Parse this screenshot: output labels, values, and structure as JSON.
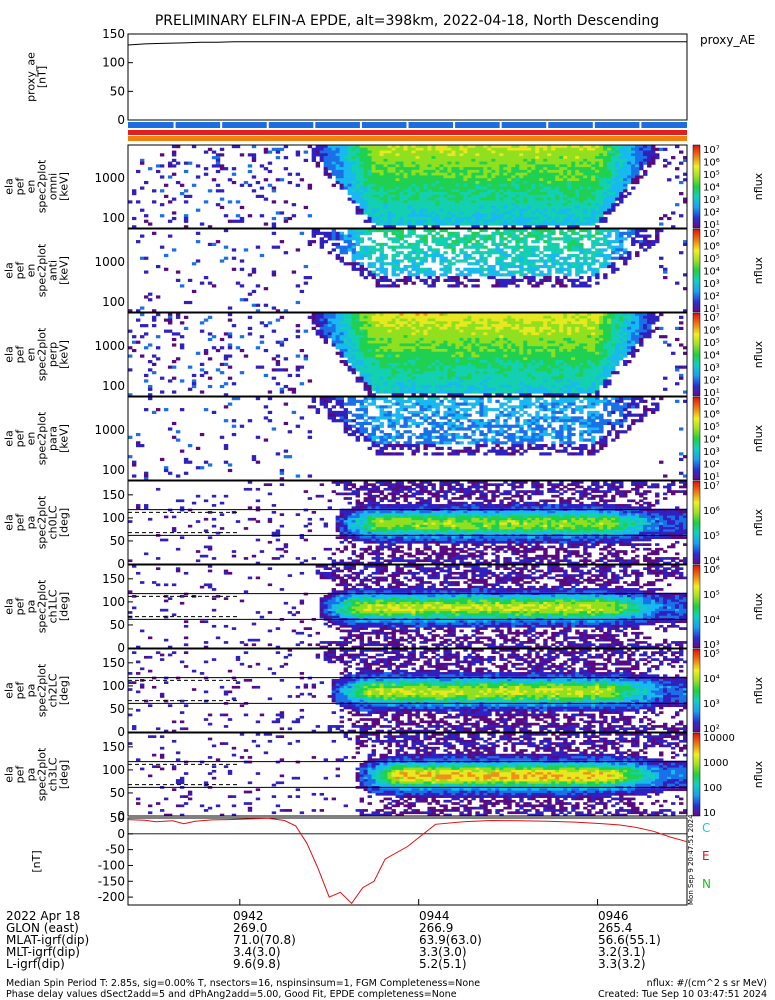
{
  "header": {
    "title": "PRELIMINARY ELFIN-A EPDE, alt=398km, 2022-04-18, North Descending"
  },
  "chart_data": [
    {
      "type": "line",
      "panel": "proxy_ae",
      "ylabel_lines": [
        "proxy_ae",
        "[nT]"
      ],
      "legend": "proxy_AE",
      "ylim": [
        0,
        150
      ],
      "yticks": [
        "150",
        "100",
        "50",
        "0"
      ],
      "x": [
        0.0,
        0.03,
        0.06,
        0.1,
        0.13,
        0.16,
        0.19,
        0.21,
        1.0
      ],
      "values": [
        135,
        137,
        138,
        139,
        140,
        140,
        141,
        141,
        141
      ]
    },
    {
      "type": "heatmap",
      "panel": "energy spectrogram 1",
      "ylabel_lines": [
        "ela",
        "pef",
        "en",
        "spec2plot",
        "omni",
        "[keV]"
      ],
      "ytick_labels": [
        "1000",
        "100"
      ],
      "colorbar_label": "nflux",
      "colorbar_ticks": [
        "10⁷",
        "10⁶",
        "10⁵",
        "10⁴",
        "10³",
        "10²",
        "10¹"
      ]
    },
    {
      "type": "heatmap",
      "panel": "energy spectrogram 2",
      "ylabel_lines": [
        "ela",
        "pef",
        "en",
        "spec2plot",
        "anti",
        "[keV]"
      ],
      "ytick_labels": [
        "1000",
        "100"
      ],
      "colorbar_label": "nflux",
      "colorbar_ticks": [
        "10⁷",
        "10⁶",
        "10⁵",
        "10⁴",
        "10³",
        "10²",
        "10¹"
      ]
    },
    {
      "type": "heatmap",
      "panel": "energy spectrogram 3",
      "ylabel_lines": [
        "ela",
        "pef",
        "en",
        "spec2plot",
        "perp",
        "[keV]"
      ],
      "ytick_labels": [
        "1000",
        "100"
      ],
      "colorbar_label": "nflux",
      "colorbar_ticks": [
        "10⁷",
        "10⁶",
        "10⁵",
        "10⁴",
        "10³",
        "10²",
        "10¹"
      ]
    },
    {
      "type": "heatmap",
      "panel": "energy spectrogram 4",
      "ylabel_lines": [
        "ela",
        "pef",
        "en",
        "spec2plot",
        "para",
        "[keV]"
      ],
      "ytick_labels": [
        "1000",
        "100"
      ],
      "colorbar_label": "nflux",
      "colorbar_ticks": [
        "10⁷",
        "10⁶",
        "10⁵",
        "10⁴",
        "10³",
        "10²",
        "10¹"
      ]
    },
    {
      "type": "heatmap",
      "panel": "pitch angle ch0",
      "ylabel_lines": [
        "ela",
        "pef",
        "pa",
        "spec2plot",
        "ch0LC",
        "[deg]"
      ],
      "ylim": [
        0,
        180
      ],
      "yticks": [
        "150",
        "100",
        "50",
        "0"
      ],
      "colorbar_label": "nflux",
      "colorbar_ticks": [
        "10⁷",
        "10⁶",
        "10⁵",
        "10⁴"
      ]
    },
    {
      "type": "heatmap",
      "panel": "pitch angle ch1",
      "ylabel_lines": [
        "ela",
        "pef",
        "pa",
        "spec2plot",
        "ch1LC",
        "[deg]"
      ],
      "ylim": [
        0,
        180
      ],
      "yticks": [
        "150",
        "100",
        "50",
        "0"
      ],
      "colorbar_label": "nflux",
      "colorbar_ticks": [
        "10⁶",
        "10⁵",
        "10⁴",
        "10³"
      ]
    },
    {
      "type": "heatmap",
      "panel": "pitch angle ch2",
      "ylabel_lines": [
        "ela",
        "pef",
        "pa",
        "spec2plot",
        "ch2LC",
        "[deg]"
      ],
      "ylim": [
        0,
        180
      ],
      "yticks": [
        "150",
        "100",
        "50",
        "0"
      ],
      "colorbar_label": "nflux",
      "colorbar_ticks": [
        "10⁵",
        "10⁴",
        "10³",
        "10²"
      ]
    },
    {
      "type": "heatmap",
      "panel": "pitch angle ch3",
      "ylabel_lines": [
        "ela",
        "pef",
        "pa",
        "spec2plot",
        "ch3LC",
        "[deg]"
      ],
      "ylim": [
        0,
        180
      ],
      "yticks": [
        "150",
        "100",
        "50",
        "0"
      ],
      "colorbar_label": "nflux",
      "colorbar_ticks": [
        "10000",
        "1000",
        "100",
        "10"
      ]
    },
    {
      "type": "line",
      "panel": "field",
      "ylabel_lines": [
        "[nT]"
      ],
      "ylim": [
        -225,
        50
      ],
      "yticks": [
        "50",
        "0",
        "-50",
        "-100",
        "-150",
        "-200"
      ],
      "legend": [
        "C",
        "E",
        "N"
      ],
      "x": [
        0.0,
        0.03,
        0.05,
        0.08,
        0.1,
        0.12,
        0.15,
        0.18,
        0.22,
        0.25,
        0.28,
        0.3,
        0.32,
        0.34,
        0.36,
        0.38,
        0.4,
        0.42,
        0.44,
        0.46,
        0.5,
        0.55,
        0.6,
        0.65,
        0.7,
        0.75,
        0.8,
        0.85,
        0.88,
        0.91,
        0.94,
        0.97,
        1.0
      ],
      "values": [
        45,
        43,
        38,
        41,
        32,
        40,
        44,
        45,
        47,
        49,
        42,
        25,
        -30,
        -110,
        -200,
        -185,
        -220,
        -170,
        -150,
        -80,
        -40,
        30,
        38,
        42,
        41,
        40,
        37,
        32,
        28,
        20,
        8,
        -10,
        -25
      ]
    }
  ],
  "ephemeris": {
    "rows": [
      {
        "label": "2022 Apr 18",
        "v1": "0942",
        "v2": "0944",
        "v3": "0946"
      },
      {
        "label": "GLON (east)",
        "v1": "269.0",
        "v2": "266.9",
        "v3": "265.4"
      },
      {
        "label": "MLAT-igrf(dip)",
        "v1": "71.0(70.8)",
        "v2": "63.9(63.0)",
        "v3": "56.6(55.1)"
      },
      {
        "label": "MLT-igrf(dip)",
        "v1": "3.4(3.0)",
        "v2": "3.3(3.0)",
        "v3": "3.2(3.1)"
      },
      {
        "label": "L-igrf(dip)",
        "v1": "9.6(9.8)",
        "v2": "5.2(5.1)",
        "v3": "3.3(3.2)"
      }
    ]
  },
  "footer": {
    "line1": "Median Spin Period T: 2.85s, sig=0.00% T, nsectors=16, nspinsinsum=1, FGM Completeness=None",
    "line2": "Phase delay values dSect2add=5 and dPhAng2add=5.00, Good Fit, EPDE completeness=None",
    "units": "nflux: #/(cm^2 s sr MeV)",
    "created": "Created: Tue Sep 10 03:47:51 2024",
    "side_stamp": "Mon Sep  9 20:47:51 2024"
  }
}
